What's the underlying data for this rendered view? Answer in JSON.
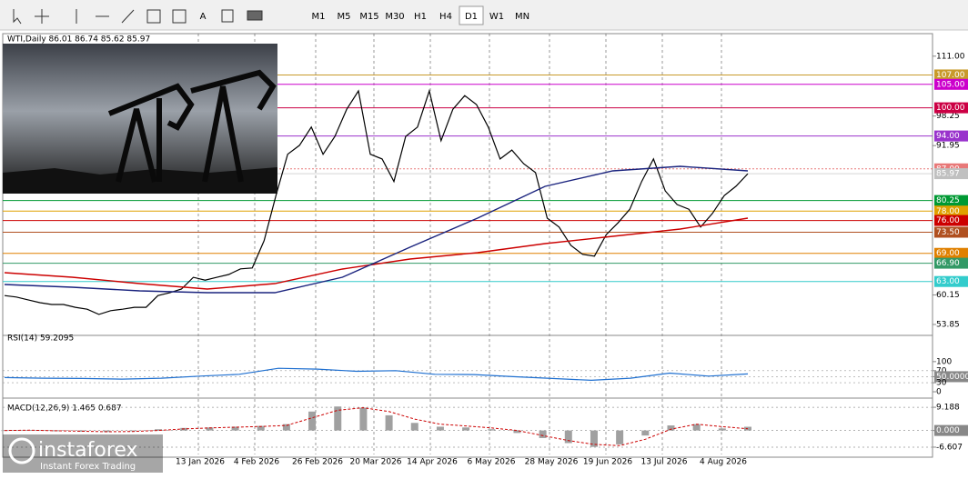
{
  "toolbar": {
    "text_tool": "A",
    "timeframes": [
      "M1",
      "M5",
      "M15",
      "M30",
      "H1",
      "H4",
      "D1",
      "W1",
      "MN"
    ],
    "active": "D1"
  },
  "logo": {
    "name": "instaforex",
    "tagline": "Instant Forex Trading"
  },
  "x_labels": [
    "13 Jan 2026",
    "4 Feb 2026",
    "26 Feb 2026",
    "20 Mar 2026",
    "14 Apr 2026",
    "6 May 2026",
    "28 May 2026",
    "19 Jun 2026",
    "13 Jul 2026",
    "4 Aug 2026"
  ],
  "chart_data": [
    {
      "type": "line",
      "title": "WTI,Daily  86.01 86.74 85.62 85.97",
      "ylim": [
        52.3,
        115.8
      ],
      "yticks": [
        {
          "value": 111,
          "label": "111.00"
        },
        98.25,
        91.95,
        60.15,
        53.85
      ],
      "last_price": {
        "value": 85.97,
        "label": "85.97"
      },
      "levels": [
        {
          "value": 107,
          "label": "107.00",
          "color": "#c89a2a"
        },
        {
          "value": 105,
          "label": "105.00",
          "color": "#cc00cc"
        },
        {
          "value": 100,
          "label": "100.00",
          "color": "#cc0044"
        },
        {
          "value": 94,
          "label": "94.00",
          "color": "#9933cc"
        },
        {
          "value": 87,
          "label": "87.00",
          "color": "#e87878"
        },
        {
          "value": 80.25,
          "label": "80.25",
          "color": "#009933"
        },
        {
          "value": 78,
          "label": "78.00",
          "color": "#e0a000"
        },
        {
          "value": 76,
          "label": "76.00",
          "color": "#cc0000"
        },
        {
          "value": 73.5,
          "label": "73.50",
          "color": "#b05020"
        },
        {
          "value": 69,
          "label": "69.00",
          "color": "#e08000"
        },
        {
          "value": 66.9,
          "label": "66.90",
          "color": "#339966"
        },
        {
          "value": 63,
          "label": "63.00",
          "color": "#33cccc"
        }
      ],
      "series": [
        {
          "color": "#000000",
          "values": [
            60.0,
            59.7,
            59.1,
            58.5,
            58.1,
            58.1,
            57.5,
            57.1,
            56.0,
            56.8,
            57.1,
            57.5,
            57.5,
            60.0,
            60.6,
            61.4,
            63.9,
            63.3,
            63.9,
            64.5,
            65.7,
            65.9,
            71.7,
            81.3,
            90.1,
            92.0,
            95.9,
            90.1,
            93.9,
            99.7,
            103.6,
            90.1,
            89.1,
            84.3,
            93.9,
            95.9,
            103.6,
            93.0,
            99.7,
            102.6,
            100.7,
            95.9,
            89.1,
            91.0,
            88.1,
            86.2,
            76.5,
            74.6,
            70.7,
            68.8,
            68.4,
            73.0,
            75.5,
            78.4,
            84.3,
            89.1,
            82.3,
            79.4,
            78.4,
            74.6,
            77.5,
            81.3,
            83.3,
            85.97
          ]
        },
        {
          "color": "#cc0000",
          "values": [
            64.88,
            63.92,
            62.56,
            61.4,
            62.56,
            65.66,
            67.79,
            69.14,
            71.08,
            72.63,
            74.18,
            76.5
          ]
        },
        {
          "color": "#1a237e",
          "values": [
            62.37,
            61.79,
            61.01,
            60.63,
            60.63,
            63.92,
            70.31,
            76.5,
            83.28,
            86.57,
            87.54,
            86.57
          ]
        }
      ]
    },
    {
      "type": "line",
      "title": "RSI(14) 59.2095",
      "ylim": [
        -18,
        190
      ],
      "yticks": [
        100,
        70,
        {
          "value": 50,
          "label": "50.0000"
        },
        30,
        0
      ],
      "series": [
        {
          "color": "#1e6fd0",
          "values": [
            47,
            45,
            44,
            42,
            45,
            52,
            58,
            78,
            75,
            68,
            70,
            58,
            57,
            50,
            44,
            38,
            45,
            62,
            52,
            59.2095
          ]
        }
      ]
    },
    {
      "type": "bar",
      "title": "MACD(12,26,9) 1.465 0.687",
      "ylim": [
        -9.5,
        12.1
      ],
      "yticks": [
        9.188,
        {
          "value": 0,
          "label": "0.000"
        },
        -6.607
      ],
      "series": [
        {
          "kind": "bar",
          "color": "#a0a0a0",
          "values": [
            0,
            0.2,
            -0.3,
            -0.5,
            -0.6,
            -0.3,
            0.5,
            1.0,
            1.2,
            1.5,
            1.8,
            2.5,
            7.5,
            9.5,
            9.0,
            6.0,
            3.0,
            1.5,
            1.2,
            0.5,
            -1.0,
            -3.0,
            -5.0,
            -6.5,
            -5.5,
            -2.0,
            2.0,
            2.5,
            0.8,
            1.465
          ]
        },
        {
          "kind": "line",
          "color": "#cc0000",
          "values": [
            0,
            0.1,
            -0.1,
            -0.3,
            -0.5,
            -0.4,
            0,
            0.6,
            1.0,
            1.3,
            1.6,
            2.0,
            5.0,
            8.0,
            9.0,
            7.5,
            4.5,
            2.5,
            1.8,
            1.0,
            0,
            -2.0,
            -4.0,
            -5.5,
            -6.0,
            -3.5,
            0.5,
            2.5,
            1.5,
            0.687
          ]
        }
      ]
    }
  ]
}
